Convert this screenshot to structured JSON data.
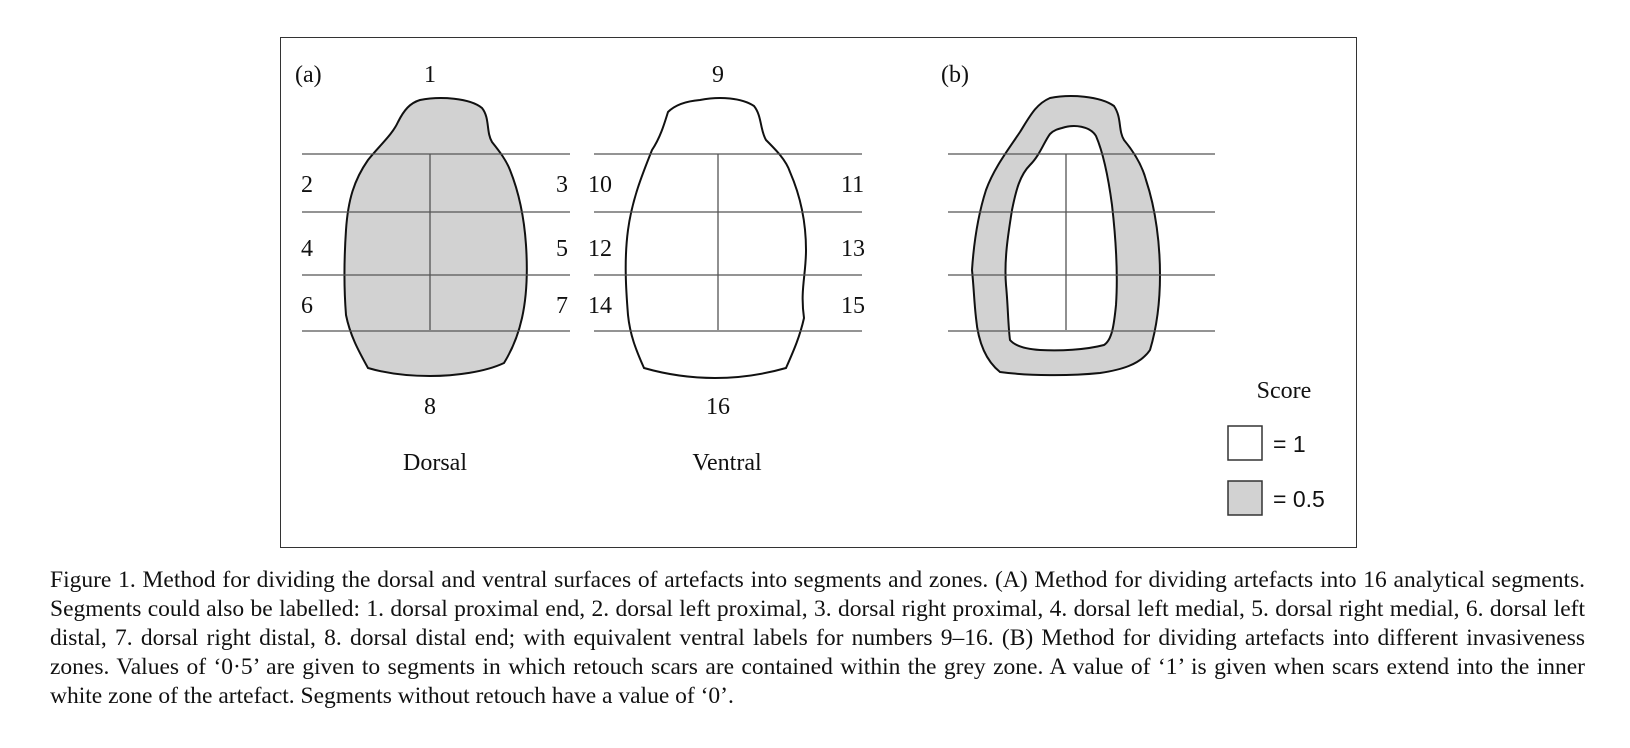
{
  "panels": {
    "a_label": "(a)",
    "b_label": "(b)"
  },
  "dorsal": {
    "segments": {
      "top": "1",
      "left_prox": "2",
      "right_prox": "3",
      "left_med": "4",
      "right_med": "5",
      "left_dist": "6",
      "right_dist": "7",
      "bottom": "8"
    },
    "title": "Dorsal"
  },
  "ventral": {
    "segments": {
      "top": "9",
      "left_prox": "10",
      "right_prox": "11",
      "left_med": "12",
      "right_med": "13",
      "left_dist": "14",
      "right_dist": "15",
      "bottom": "16"
    },
    "title": "Ventral"
  },
  "legend": {
    "title": "Score",
    "items": [
      {
        "label": "= 1",
        "color": "#ffffff"
      },
      {
        "label": "= 0.5",
        "color": "#d2d2d2"
      }
    ]
  },
  "colors": {
    "grey_zone": "#d2d2d2",
    "outline": "#111111",
    "grid_line": "#555555"
  },
  "caption": "Figure 1.  Method for dividing the dorsal and ventral surfaces of artefacts into segments and zones. (A) Method for dividing artefacts into 16 analytical segments. Segments could also be labelled: 1. dorsal proximal end, 2. dorsal left proximal, 3. dorsal right proximal, 4. dorsal left medial, 5. dorsal right medial, 6. dorsal left distal, 7. dorsal right distal, 8. dorsal distal end; with equivalent ventral labels for numbers 9–16. (B) Method for dividing artefacts into different invasiveness zones. Values of ‘0·5’ are given to segments in which retouch scars are contained within the grey zone. A value of ‘1’ is given when scars extend into the inner white zone of the artefact. Segments without retouch have a value of ‘0’."
}
